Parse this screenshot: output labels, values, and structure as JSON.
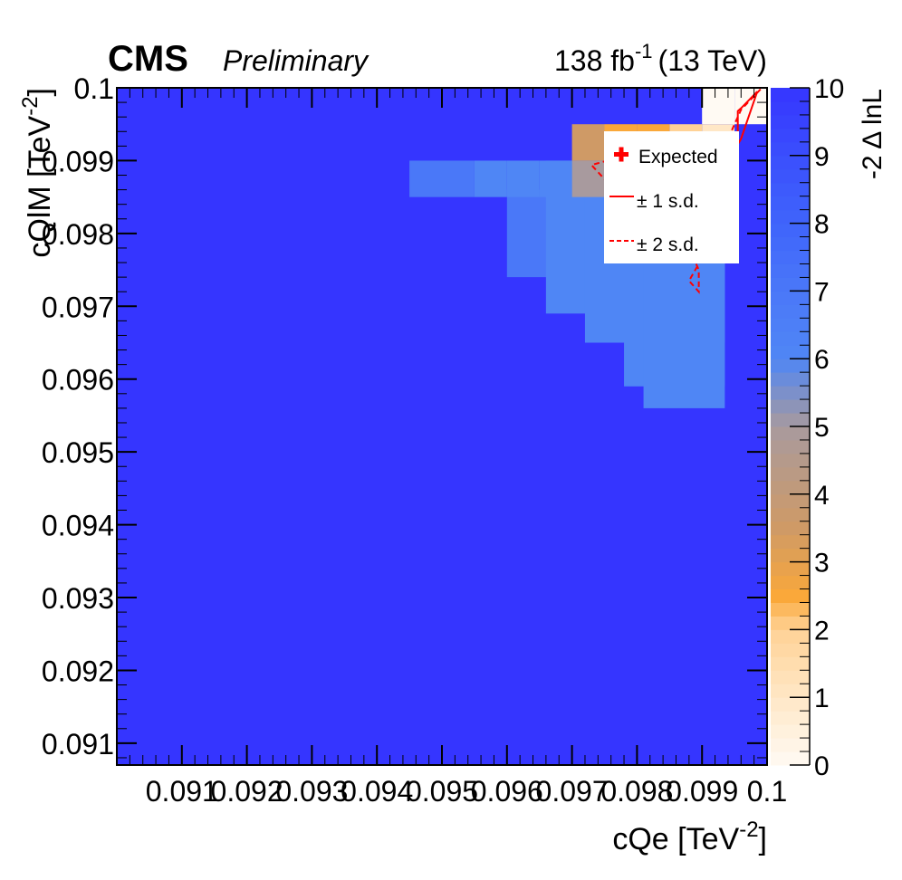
{
  "header": {
    "experiment": "CMS",
    "status": "Preliminary",
    "lumi_value": "138 fb",
    "lumi_exponent": "-1",
    "energy": "(13 TeV)"
  },
  "chart_data": {
    "type": "heatmap",
    "xlabel": "cQe [TeV",
    "xlabel_exponent": "-2",
    "xlabel_close": "]",
    "ylabel": "cQlM [TeV",
    "ylabel_exponent": "-2",
    "ylabel_close": "]",
    "zlabel": "-2 Δ lnL",
    "xlim": [
      0.09,
      0.1
    ],
    "ylim": [
      0.0907,
      0.1
    ],
    "zlim": [
      0,
      10
    ],
    "x_ticks": [
      "0.091",
      "0.092",
      "0.093",
      "0.094",
      "0.095",
      "0.096",
      "0.097",
      "0.098",
      "0.099",
      "0.1"
    ],
    "y_ticks": [
      "0.091",
      "0.092",
      "0.093",
      "0.094",
      "0.095",
      "0.096",
      "0.097",
      "0.098",
      "0.099",
      "0.1"
    ],
    "z_ticks": [
      "0",
      "1",
      "2",
      "3",
      "4",
      "5",
      "6",
      "7",
      "8",
      "9",
      "10"
    ],
    "z_colors": [
      "#fffaf3",
      "#ffe7c6",
      "#ffd296",
      "#faa83a",
      "#cf9a66",
      "#a89a9e",
      "#4f86f5",
      "#4a78f8",
      "#3f64fb",
      "#3a4ffd",
      "#3535ff"
    ],
    "background_value": 10,
    "cells": [
      {
        "x": 0.09975,
        "y": 0.09975,
        "w": 0.0005,
        "h": 0.0005,
        "z": 0.2
      },
      {
        "x": 0.09925,
        "y": 0.09975,
        "w": 0.0005,
        "h": 0.0005,
        "z": 0.4
      },
      {
        "x": 0.09925,
        "y": 0.09925,
        "w": 0.0005,
        "h": 0.0005,
        "z": 1.4
      },
      {
        "x": 0.09875,
        "y": 0.09925,
        "w": 0.0005,
        "h": 0.0005,
        "z": 2.1
      },
      {
        "x": 0.09825,
        "y": 0.09925,
        "w": 0.0005,
        "h": 0.0005,
        "z": 2.6
      },
      {
        "x": 0.09775,
        "y": 0.09925,
        "w": 0.0005,
        "h": 0.0005,
        "z": 2.9
      },
      {
        "x": 0.09725,
        "y": 0.09925,
        "w": 0.0005,
        "h": 0.0005,
        "z": 3.6
      },
      {
        "x": 0.09925,
        "y": 0.09875,
        "w": 0.0005,
        "h": 0.0005,
        "z": 2.8
      },
      {
        "x": 0.09875,
        "y": 0.09875,
        "w": 0.0005,
        "h": 0.0005,
        "z": 3.4
      },
      {
        "x": 0.09825,
        "y": 0.09875,
        "w": 0.0005,
        "h": 0.0005,
        "z": 4.2
      },
      {
        "x": 0.09775,
        "y": 0.09875,
        "w": 0.0005,
        "h": 0.0005,
        "z": 4.8
      },
      {
        "x": 0.09725,
        "y": 0.09875,
        "w": 0.0005,
        "h": 0.0005,
        "z": 5.3
      },
      {
        "x": 0.09675,
        "y": 0.09875,
        "w": 0.0005,
        "h": 0.0005,
        "z": 5.8
      },
      {
        "x": 0.09625,
        "y": 0.09875,
        "w": 0.0005,
        "h": 0.0005,
        "z": 6.0
      },
      {
        "x": 0.09575,
        "y": 0.09875,
        "w": 0.0005,
        "h": 0.0005,
        "z": 6.3
      },
      {
        "x": 0.09525,
        "y": 0.09875,
        "w": 0.0005,
        "h": 0.0005,
        "z": 6.6
      },
      {
        "x": 0.09475,
        "y": 0.09875,
        "w": 0.0005,
        "h": 0.0005,
        "z": 7.0
      }
    ],
    "legend": {
      "entries": [
        "Expected",
        "± 1 s.d.",
        "± 2 s.d."
      ]
    }
  }
}
